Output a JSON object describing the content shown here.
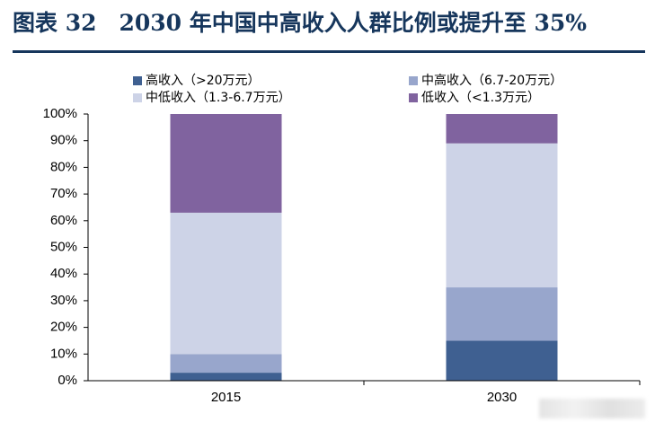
{
  "header": {
    "title": "图表 32　2030 年中国中高收入人群比例或提升至 35%"
  },
  "chart_data": {
    "type": "bar",
    "stacked": true,
    "percent": true,
    "categories": [
      "2015",
      "2030"
    ],
    "series": [
      {
        "name": "高收入（>20万元）",
        "color": "#3f6091",
        "values": [
          3,
          15
        ]
      },
      {
        "name": "中高收入（6.7-20万元）",
        "color": "#98a6cc",
        "values": [
          7,
          20
        ]
      },
      {
        "name": "中低收入（1.3-6.7万元）",
        "color": "#cdd3e7",
        "values": [
          53,
          54
        ]
      },
      {
        "name": "低收入（<1.3万元）",
        "color": "#80639f",
        "values": [
          37,
          11
        ]
      }
    ],
    "ylim": [
      0,
      100
    ],
    "yticks": [
      "0%",
      "10%",
      "20%",
      "30%",
      "40%",
      "50%",
      "60%",
      "70%",
      "80%",
      "90%",
      "100%"
    ],
    "legend_position": "top",
    "grid": false,
    "xlabel": "",
    "ylabel": ""
  }
}
